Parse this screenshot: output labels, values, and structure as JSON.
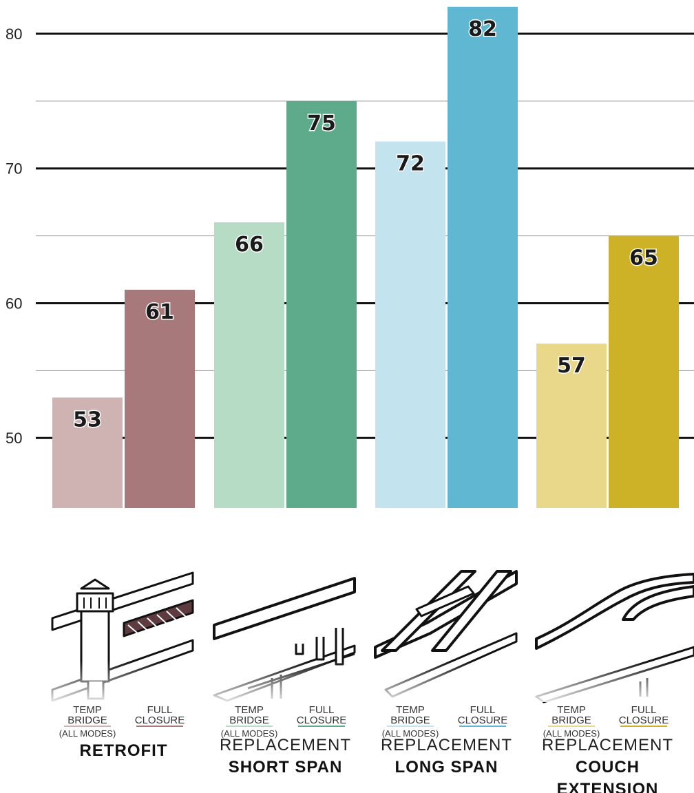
{
  "chart_data": {
    "type": "bar",
    "ylim": [
      44.8,
      82.5
    ],
    "yticks": [
      "50",
      "60",
      "70",
      "80"
    ],
    "ytick_values": [
      50,
      60,
      70,
      80
    ],
    "minor_gridlines": [
      55,
      65,
      75
    ],
    "grid": true,
    "groups": [
      {
        "title_light": "",
        "title_bold": [
          "RETROFIT"
        ],
        "bars": [
          {
            "label": [
              "TEMP",
              "BRIDGE"
            ],
            "sublabel": "(ALL MODES)",
            "value": 53,
            "value_label": "53",
            "color": "#cfb3b3"
          },
          {
            "label": [
              "FULL",
              "CLOSURE"
            ],
            "sublabel": "",
            "value": 61,
            "value_label": "61",
            "color": "#a8797b"
          }
        ]
      },
      {
        "title_light": "REPLACEMENT",
        "title_bold": [
          "SHORT SPAN"
        ],
        "bars": [
          {
            "label": [
              "TEMP",
              "BRIDGE"
            ],
            "sublabel": "(ALL MODES)",
            "value": 66,
            "value_label": "66",
            "color": "#b6dcc6"
          },
          {
            "label": [
              "FULL",
              "CLOSURE"
            ],
            "sublabel": "",
            "value": 75,
            "value_label": "75",
            "color": "#5eab8b"
          }
        ]
      },
      {
        "title_light": "REPLACEMENT",
        "title_bold": [
          "LONG SPAN"
        ],
        "bars": [
          {
            "label": [
              "TEMP",
              "BRIDGE"
            ],
            "sublabel": "(ALL MODES)",
            "value": 72,
            "value_label": "72",
            "color": "#c3e3ee"
          },
          {
            "label": [
              "FULL",
              "CLOSURE"
            ],
            "sublabel": "",
            "value": 82,
            "value_label": "82",
            "color": "#5fb7d2"
          }
        ]
      },
      {
        "title_light": "REPLACEMENT",
        "title_bold": [
          "COUCH",
          "EXTENSION"
        ],
        "bars": [
          {
            "label": [
              "TEMP",
              "BRIDGE"
            ],
            "sublabel": "(ALL MODES)",
            "value": 57,
            "value_label": "57",
            "color": "#e9d88a"
          },
          {
            "label": [
              "FULL",
              "CLOSURE"
            ],
            "sublabel": "",
            "value": 65,
            "value_label": "65",
            "color": "#cdb126"
          }
        ]
      }
    ]
  }
}
